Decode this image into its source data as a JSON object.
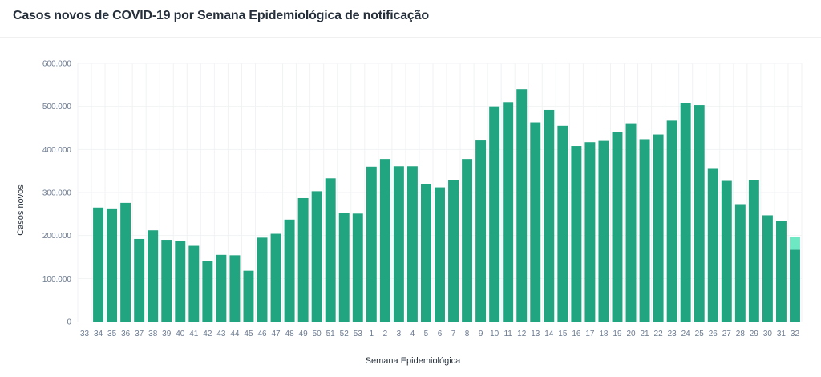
{
  "title": "Casos novos de COVID-19 por Semana Epidemiológica de notificação",
  "colors": {
    "bar": "#21a581",
    "bar_partial": "#6ee8c3",
    "grid": "#f0f2f4",
    "axis": "#c9d0d8"
  },
  "chart_data": {
    "type": "bar",
    "xlabel": "Semana Epidemiológica",
    "ylabel": "Casos novos",
    "ylim": [
      0,
      600000
    ],
    "yticks": [
      0,
      100000,
      200000,
      300000,
      400000,
      500000,
      600000
    ],
    "ytick_labels": [
      "0",
      "100.000",
      "200.000",
      "300.000",
      "400.000",
      "500.000",
      "600.000"
    ],
    "grid": true,
    "categories": [
      "33",
      "34",
      "35",
      "36",
      "37",
      "38",
      "39",
      "40",
      "41",
      "42",
      "43",
      "44",
      "45",
      "46",
      "47",
      "48",
      "49",
      "50",
      "51",
      "52",
      "53",
      "1",
      "2",
      "3",
      "4",
      "5",
      "6",
      "7",
      "8",
      "9",
      "10",
      "11",
      "12",
      "13",
      "14",
      "15",
      "16",
      "17",
      "18",
      "19",
      "20",
      "21",
      "22",
      "23",
      "24",
      "25",
      "26",
      "27",
      "28",
      "29",
      "30",
      "31",
      "32"
    ],
    "values": [
      0,
      265000,
      263000,
      276000,
      192000,
      212000,
      190000,
      188000,
      176000,
      141000,
      155000,
      154000,
      118000,
      195000,
      204000,
      237000,
      287000,
      303000,
      333000,
      252000,
      251000,
      360000,
      378000,
      361000,
      361000,
      320000,
      312000,
      329000,
      378000,
      421000,
      500000,
      510000,
      540000,
      463000,
      492000,
      455000,
      408000,
      417000,
      420000,
      441000,
      461000,
      424000,
      435000,
      467000,
      508000,
      503000,
      355000,
      327000,
      273000,
      328000,
      247000,
      234000,
      167000
    ],
    "partial_extra": [
      0,
      0,
      0,
      0,
      0,
      0,
      0,
      0,
      0,
      0,
      0,
      0,
      0,
      0,
      0,
      0,
      0,
      0,
      0,
      0,
      0,
      0,
      0,
      0,
      0,
      0,
      0,
      0,
      0,
      0,
      0,
      0,
      0,
      0,
      0,
      0,
      0,
      0,
      0,
      0,
      0,
      0,
      0,
      0,
      0,
      0,
      0,
      0,
      0,
      0,
      0,
      0,
      30000
    ]
  }
}
